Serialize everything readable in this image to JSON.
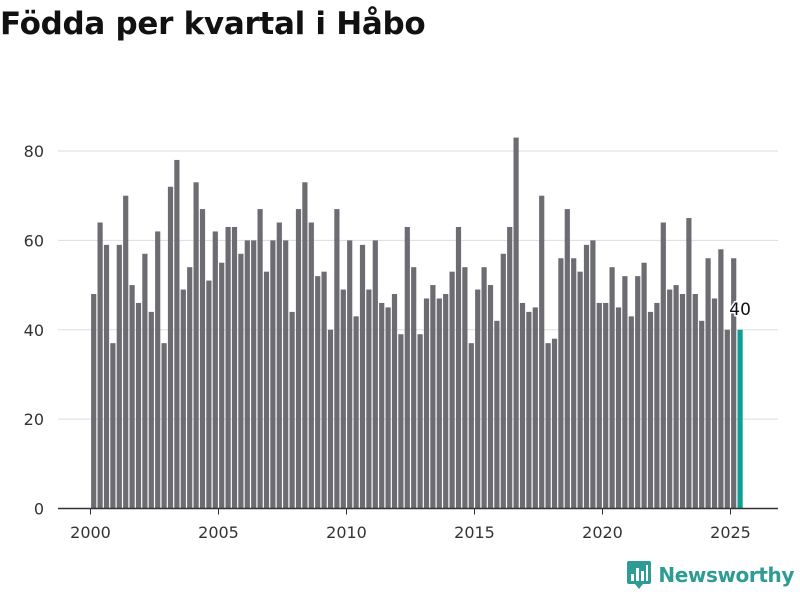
{
  "chart_data": {
    "type": "bar",
    "title": "Födda per kvartal i Håbo",
    "xlabel": "",
    "ylabel": "",
    "ylim": [
      0,
      83
    ],
    "x_ticks": [
      "2000",
      "2005",
      "2010",
      "2015",
      "2020",
      "2025"
    ],
    "y_ticks": [
      "0",
      "20",
      "40",
      "60",
      "80"
    ],
    "start": "2000Q1",
    "end": "2025Q2",
    "values": [
      48,
      64,
      59,
      37,
      59,
      70,
      50,
      46,
      57,
      44,
      62,
      37,
      72,
      78,
      49,
      54,
      73,
      67,
      51,
      62,
      55,
      63,
      63,
      57,
      60,
      60,
      67,
      53,
      60,
      64,
      60,
      44,
      67,
      73,
      64,
      52,
      53,
      40,
      67,
      49,
      60,
      43,
      59,
      49,
      60,
      46,
      45,
      48,
      39,
      63,
      54,
      39,
      47,
      50,
      47,
      48,
      53,
      63,
      54,
      37,
      49,
      54,
      50,
      42,
      57,
      63,
      83,
      46,
      44,
      45,
      70,
      37,
      38,
      56,
      67,
      56,
      53,
      59,
      60,
      46,
      46,
      54,
      45,
      52,
      43,
      52,
      55,
      44,
      46,
      64,
      49,
      50,
      48,
      65,
      48,
      42,
      56,
      47,
      58,
      40,
      56,
      40
    ],
    "highlight": {
      "index": 101,
      "label": "40"
    },
    "colors": {
      "bar": "#6d6c72",
      "highlight": "#0f9e96",
      "grid": "#dddddd",
      "axis": "#333333",
      "tick_text": "#333333"
    },
    "grid": true
  },
  "brand": {
    "name": "Newsworthy",
    "icon": "bar-chart-icon",
    "color": "#2e9c94"
  }
}
